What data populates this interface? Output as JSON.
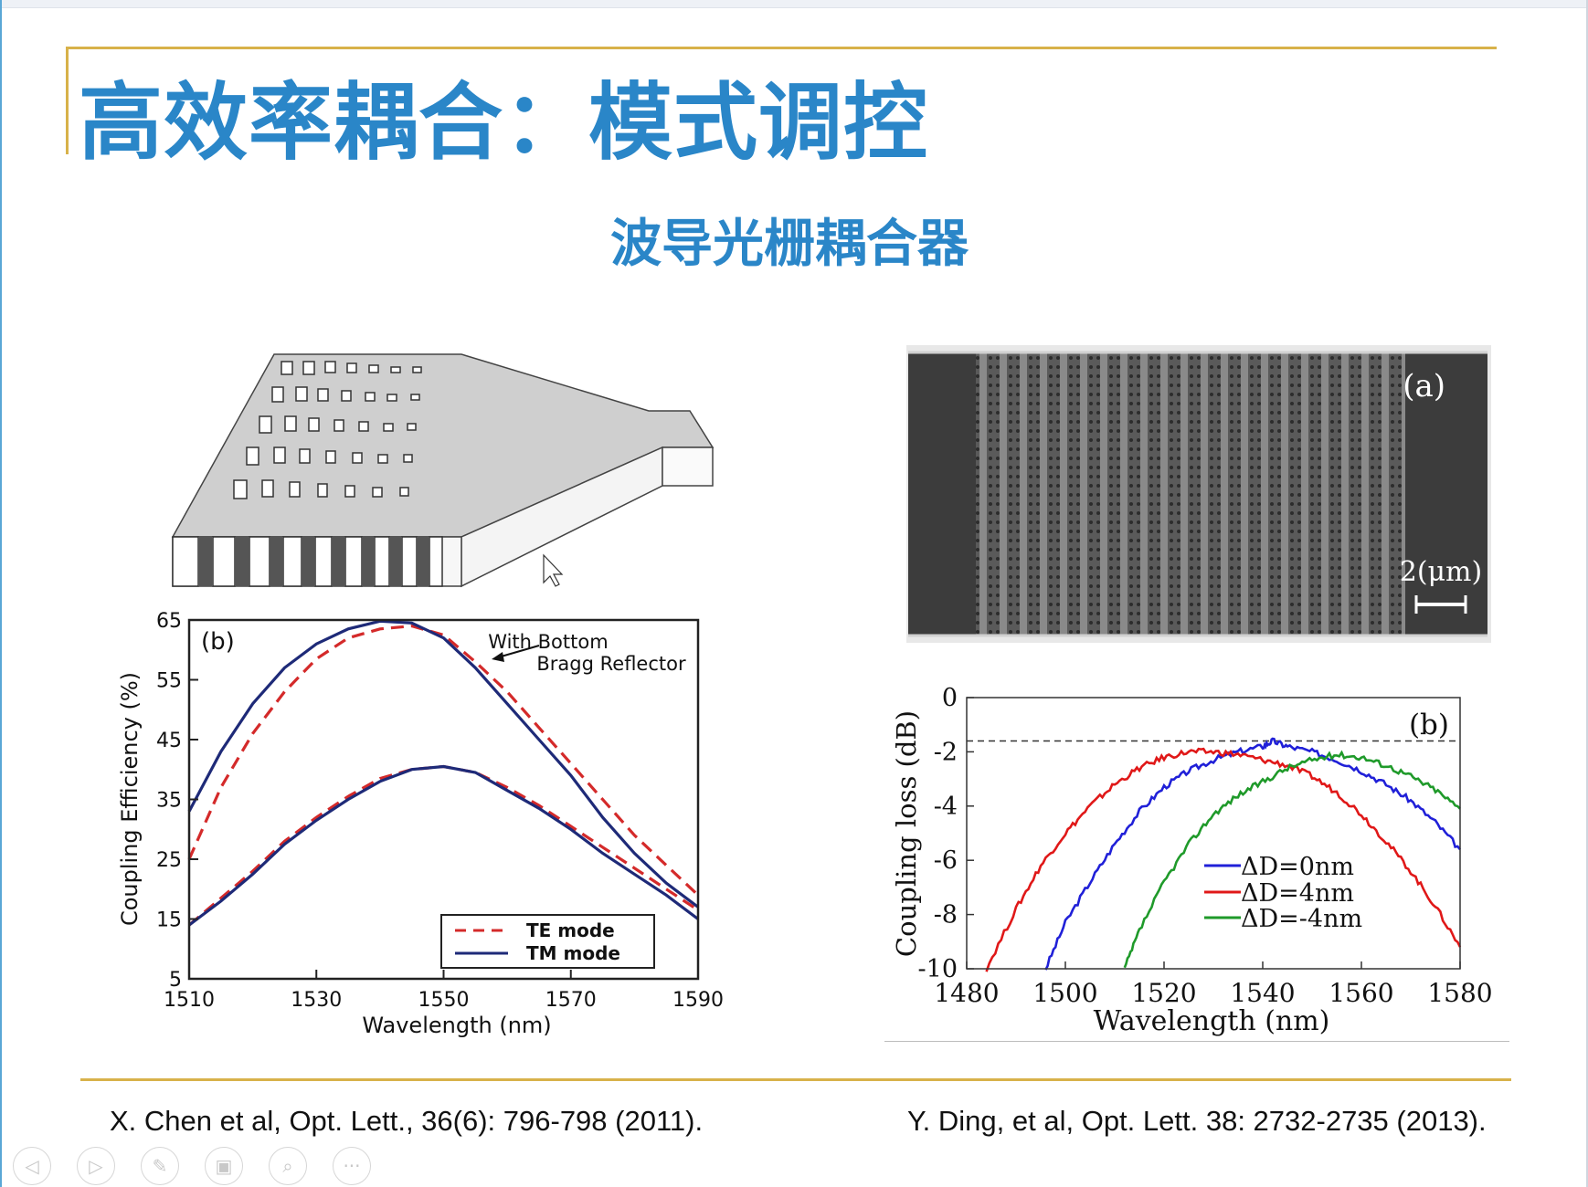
{
  "slide": {
    "title": "高效率耦合：模式调控",
    "subtitle": "波导光栅耦合器"
  },
  "references": {
    "left": "X. Chen et al, Opt. Lett., 36(6): 796-798 (2011).",
    "right": "Y. Ding, et al, Opt. Lett. 38: 2732-2735 (2013)."
  },
  "toolbar": {
    "buttons": [
      {
        "icon": "prev-icon",
        "glyph": "◁"
      },
      {
        "icon": "next-icon",
        "glyph": "▷"
      },
      {
        "icon": "pen-icon",
        "glyph": "✎"
      },
      {
        "icon": "slides-icon",
        "glyph": "▣"
      },
      {
        "icon": "zoom-icon",
        "glyph": "⌕"
      },
      {
        "icon": "more-icon",
        "glyph": "···"
      }
    ]
  },
  "sem_image": {
    "panel_label": "(a)",
    "scale_label": "2(μm)"
  },
  "chart_data": [
    {
      "type": "line",
      "panel_label": "(b)",
      "xlabel": "Wavelength (nm)",
      "ylabel": "Coupling Efficiency (%)",
      "xlim": [
        1510,
        1590
      ],
      "ylim": [
        5,
        65
      ],
      "xticks": [
        1510,
        1530,
        1550,
        1570,
        1590
      ],
      "yticks": [
        5,
        15,
        25,
        35,
        45,
        55,
        65
      ],
      "annotation": [
        "With Bottom",
        "Bragg Reflector"
      ],
      "legend_position": "bottom-right",
      "legend": [
        "TE mode",
        "TM mode"
      ],
      "series": [
        {
          "name": "TE mode",
          "style": "dashed",
          "color": "#d42a2a",
          "x": [
            1510,
            1515,
            1520,
            1525,
            1530,
            1535,
            1540,
            1545,
            1550,
            1555,
            1560,
            1565,
            1570,
            1575,
            1580,
            1585,
            1590
          ],
          "y": [
            25,
            37,
            46,
            53,
            58.5,
            62,
            63.5,
            64,
            62.5,
            58,
            53,
            47,
            41,
            35,
            29,
            24,
            19
          ]
        },
        {
          "name": "TM mode",
          "style": "solid",
          "color": "#1e2a78",
          "x": [
            1510,
            1515,
            1520,
            1525,
            1530,
            1535,
            1540,
            1545,
            1550,
            1555,
            1560,
            1565,
            1570,
            1575,
            1580,
            1585,
            1590
          ],
          "y": [
            33,
            43,
            51,
            57,
            61,
            63.5,
            64.8,
            64.5,
            62,
            57,
            51,
            45,
            39,
            32,
            26,
            21,
            17
          ]
        },
        {
          "style": "dashed",
          "color": "#d42a2a",
          "x": [
            1510,
            1515,
            1520,
            1525,
            1530,
            1535,
            1540,
            1545,
            1550,
            1555,
            1560,
            1565,
            1570,
            1575,
            1580,
            1585,
            1590
          ],
          "y": [
            14,
            18.5,
            23,
            28,
            32,
            35.5,
            38.5,
            40,
            40.5,
            39.5,
            37,
            34,
            30.5,
            27,
            23.5,
            20,
            16.5
          ]
        },
        {
          "style": "solid",
          "color": "#1e2a78",
          "x": [
            1510,
            1515,
            1520,
            1525,
            1530,
            1535,
            1540,
            1545,
            1550,
            1555,
            1560,
            1565,
            1570,
            1575,
            1580,
            1585,
            1590
          ],
          "y": [
            14,
            18,
            22.5,
            27.5,
            31.5,
            35,
            38,
            40,
            40.5,
            39.5,
            36.5,
            33.5,
            30,
            26,
            22.5,
            19,
            15
          ]
        }
      ]
    },
    {
      "type": "line",
      "panel_label": "(b)",
      "xlabel": "Wavelength (nm)",
      "ylabel": "Coupling loss (dB)",
      "xlim": [
        1480,
        1580
      ],
      "ylim": [
        -10,
        0
      ],
      "xticks": [
        1480,
        1500,
        1520,
        1540,
        1560,
        1580
      ],
      "yticks": [
        0,
        -2,
        -4,
        -6,
        -8,
        -10
      ],
      "reference_line_y": -1.6,
      "legend_position": "center-left",
      "legend": [
        "ΔD=0nm",
        "ΔD=4nm",
        "ΔD=-4nm"
      ],
      "series": [
        {
          "name": "ΔD=0nm",
          "color": "#2020d8",
          "x": [
            1496,
            1500,
            1505,
            1510,
            1515,
            1520,
            1525,
            1530,
            1535,
            1540,
            1542,
            1545,
            1550,
            1555,
            1560,
            1565,
            1570,
            1575,
            1580
          ],
          "y": [
            -10,
            -8.3,
            -6.8,
            -5.4,
            -4.2,
            -3.3,
            -2.7,
            -2.3,
            -2.0,
            -1.8,
            -1.6,
            -1.8,
            -2.0,
            -2.3,
            -2.7,
            -3.2,
            -3.8,
            -4.6,
            -5.6
          ]
        },
        {
          "name": "ΔD=4nm",
          "color": "#e01818",
          "x": [
            1484,
            1490,
            1495,
            1500,
            1505,
            1510,
            1515,
            1520,
            1525,
            1530,
            1535,
            1540,
            1545,
            1550,
            1555,
            1560,
            1565,
            1570,
            1575,
            1580
          ],
          "y": [
            -10,
            -7.8,
            -6.2,
            -5.0,
            -4.0,
            -3.2,
            -2.6,
            -2.2,
            -2.0,
            -2.0,
            -2.1,
            -2.3,
            -2.5,
            -2.9,
            -3.5,
            -4.3,
            -5.3,
            -6.4,
            -7.7,
            -9.2
          ]
        },
        {
          "name": "ΔD=-4nm",
          "color": "#1f9a2a",
          "x": [
            1512,
            1515,
            1520,
            1525,
            1530,
            1535,
            1540,
            1545,
            1550,
            1555,
            1560,
            1565,
            1570,
            1575,
            1580
          ],
          "y": [
            -10,
            -8.6,
            -6.8,
            -5.4,
            -4.3,
            -3.6,
            -3.1,
            -2.6,
            -2.3,
            -2.1,
            -2.2,
            -2.5,
            -2.9,
            -3.4,
            -4.1
          ]
        }
      ]
    }
  ]
}
